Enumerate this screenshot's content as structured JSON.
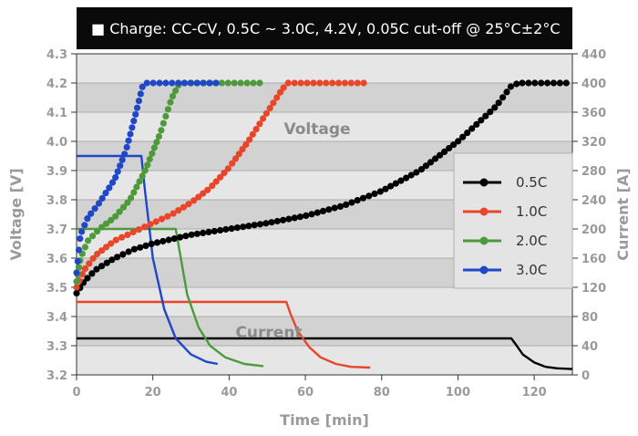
{
  "chart_data": {
    "type": "line",
    "title": "■ Charge: CC-CV, 0.5C ~ 3.0C, 4.2V, 0.05C cut-off @ 25°C±2°C",
    "xlabel": "Time [min]",
    "ylabel_left": "Voltage [V]",
    "ylabel_right": "Current [A]",
    "xlim": [
      0,
      130
    ],
    "ylim_left": [
      3.2,
      4.3
    ],
    "ylim_right": [
      0,
      440
    ],
    "x_ticks": [
      0,
      20,
      40,
      60,
      80,
      100,
      120
    ],
    "y_left_ticks": [
      3.2,
      3.3,
      3.4,
      3.5,
      3.6,
      3.7,
      3.8,
      3.9,
      4.0,
      4.1,
      4.2,
      4.3
    ],
    "y_left_tick_labels": [
      "3.2",
      "3.3",
      "3.4",
      "3.5",
      "3.6",
      "3.7",
      "3.8",
      "3.9",
      "4.0",
      "4.1",
      "4.2",
      "4.3"
    ],
    "y_right_ticks": [
      0,
      40,
      80,
      120,
      160,
      200,
      240,
      280,
      320,
      360,
      400,
      440
    ],
    "y_right_tick_labels": [
      "0",
      "40",
      "80",
      "120",
      "160",
      "200",
      "240",
      "280",
      "320",
      "360",
      "400",
      "440"
    ],
    "annotations": {
      "voltage": "Voltage",
      "current": "Current"
    },
    "legend_position": "right",
    "legend": [
      {
        "label": "0.5C",
        "color": "#000000"
      },
      {
        "label": "1.0C",
        "color": "#e8462a"
      },
      {
        "label": "2.0C",
        "color": "#4e9a3a"
      },
      {
        "label": "3.0C",
        "color": "#1f47c8"
      }
    ],
    "voltage_series": [
      {
        "name": "0.5C",
        "color": "#000000",
        "x": [
          0,
          2,
          5,
          10,
          15,
          20,
          30,
          40,
          50,
          60,
          70,
          80,
          90,
          100,
          110,
          114,
          116,
          120,
          125,
          129
        ],
        "y": [
          3.48,
          3.52,
          3.56,
          3.6,
          3.63,
          3.65,
          3.68,
          3.7,
          3.72,
          3.745,
          3.78,
          3.83,
          3.9,
          4.0,
          4.12,
          4.19,
          4.2,
          4.2,
          4.2,
          4.2
        ]
      },
      {
        "name": "1.0C",
        "color": "#e8462a",
        "x": [
          0,
          2,
          5,
          10,
          15,
          20,
          25,
          30,
          35,
          40,
          45,
          50,
          54,
          55.5,
          60,
          65,
          70,
          76
        ],
        "y": [
          3.5,
          3.56,
          3.61,
          3.66,
          3.69,
          3.72,
          3.75,
          3.79,
          3.84,
          3.91,
          4.0,
          4.1,
          4.18,
          4.2,
          4.2,
          4.2,
          4.2,
          4.2
        ]
      },
      {
        "name": "2.0C",
        "color": "#4e9a3a",
        "x": [
          0,
          1,
          3,
          6,
          10,
          14,
          18,
          22,
          25,
          27,
          30,
          35,
          40,
          45,
          49
        ],
        "y": [
          3.52,
          3.6,
          3.66,
          3.7,
          3.74,
          3.8,
          3.9,
          4.03,
          4.15,
          4.2,
          4.2,
          4.2,
          4.2,
          4.2,
          4.2
        ]
      },
      {
        "name": "3.0C",
        "color": "#1f47c8",
        "x": [
          0,
          1,
          3,
          6,
          10,
          13,
          16,
          17.5,
          20,
          25,
          30,
          35,
          37
        ],
        "y": [
          3.55,
          3.68,
          3.74,
          3.79,
          3.87,
          3.97,
          4.12,
          4.2,
          4.2,
          4.2,
          4.2,
          4.2,
          4.2
        ]
      }
    ],
    "current_series": [
      {
        "name": "0.5C",
        "color": "#000000",
        "x": [
          0,
          114,
          115,
          117,
          120,
          123,
          126,
          130
        ],
        "y": [
          50,
          50,
          43,
          28,
          17,
          11,
          9,
          8
        ]
      },
      {
        "name": "1.0C",
        "color": "#e8462a",
        "x": [
          0,
          55,
          56,
          58,
          61,
          64,
          68,
          72,
          77
        ],
        "y": [
          100,
          100,
          85,
          60,
          38,
          24,
          15,
          11,
          10
        ]
      },
      {
        "name": "2.0C",
        "color": "#4e9a3a",
        "x": [
          0,
          26,
          27,
          29,
          32,
          35,
          39,
          44,
          49
        ],
        "y": [
          200,
          200,
          170,
          110,
          65,
          40,
          24,
          15,
          12
        ]
      },
      {
        "name": "3.0C",
        "color": "#1f47c8",
        "x": [
          0,
          17,
          18,
          20,
          23,
          26,
          30,
          34,
          37
        ],
        "y": [
          300,
          300,
          250,
          160,
          90,
          50,
          28,
          18,
          15
        ]
      }
    ]
  }
}
